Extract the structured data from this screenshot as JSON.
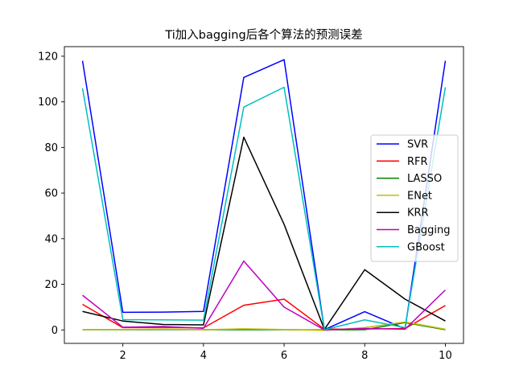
{
  "chart_data": {
    "type": "line",
    "title": "Ti加入bagging后各个算法的预测误差",
    "xlabel": "",
    "ylabel": "",
    "x": [
      1,
      2,
      3,
      4,
      5,
      6,
      7,
      8,
      9,
      10
    ],
    "xlim": [
      0.55,
      10.45
    ],
    "ylim": [
      -5.9,
      124.2
    ],
    "xticks": [
      2,
      4,
      6,
      8,
      10
    ],
    "yticks": [
      0,
      20,
      40,
      60,
      80,
      100,
      120
    ],
    "legend_position": "center-right",
    "series": [
      {
        "name": "SVR",
        "color": "#0000ff",
        "values": [
          118.0,
          7.7,
          7.8,
          8.1,
          110.7,
          118.5,
          0.1,
          8.0,
          0.5,
          118.0
        ]
      },
      {
        "name": "RFR",
        "color": "#ff0000",
        "values": [
          11.2,
          1.0,
          1.1,
          0.9,
          10.8,
          13.5,
          0.3,
          0.4,
          0.6,
          10.7
        ]
      },
      {
        "name": "LASSO",
        "color": "#008000",
        "values": [
          0.1,
          0.1,
          0.2,
          0.1,
          0.1,
          0.1,
          0.0,
          0.1,
          3.2,
          0.1
        ]
      },
      {
        "name": "ENet",
        "color": "#bfbf00",
        "values": [
          0.2,
          0.2,
          0.4,
          0.1,
          0.5,
          0.2,
          -0.2,
          1.0,
          3.5,
          0.3
        ]
      },
      {
        "name": "KRR",
        "color": "#000000",
        "values": [
          8.1,
          3.9,
          2.4,
          2.2,
          84.5,
          46.3,
          0.2,
          26.4,
          13.5,
          3.9
        ]
      },
      {
        "name": "Bagging",
        "color": "#bf00bf",
        "values": [
          15.2,
          1.2,
          1.5,
          0.7,
          30.2,
          10.0,
          0.0,
          0.6,
          0.3,
          17.5
        ]
      },
      {
        "name": "GBoost",
        "color": "#00bfbf",
        "values": [
          105.9,
          4.5,
          4.4,
          4.3,
          97.7,
          106.4,
          0.1,
          4.4,
          1.0,
          106.4
        ]
      }
    ]
  }
}
